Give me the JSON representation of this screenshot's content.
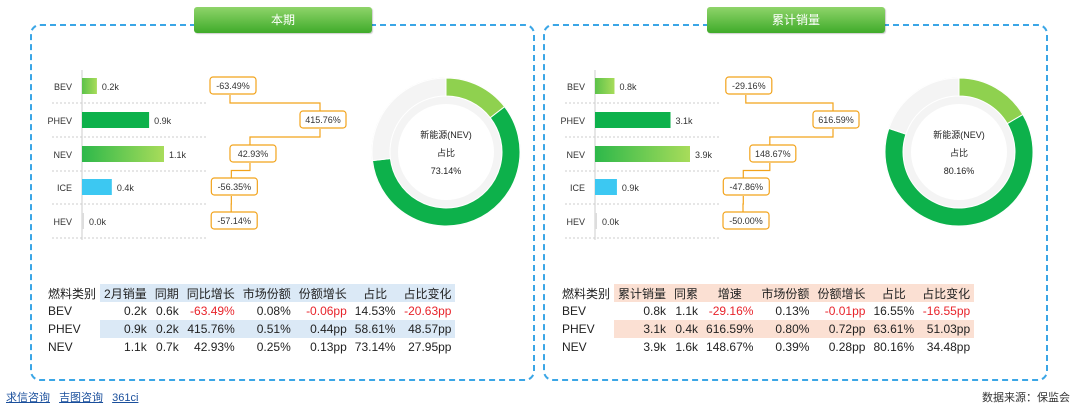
{
  "colors": {
    "BEV": "#8fd14f",
    "PHEV": "#0db14b",
    "NEV": "#5cc24a",
    "ICE": "#3cc8f2",
    "HEV": "#dddddd",
    "negative": "#e8232a",
    "border": "#3ba6e6"
  },
  "panels": [
    {
      "title": "本期",
      "donut_label_line1": "新能源(NEV)",
      "donut_label_line2": "占比",
      "donut_value": "73.14%",
      "table_headers": [
        "燃料类别",
        "2月销量",
        "同期",
        "同比增长",
        "市场份额",
        "份额增长",
        "占比",
        "占比变化"
      ],
      "table_rows": [
        [
          "BEV",
          "0.2k",
          "0.6k",
          "-63.49%",
          "0.08%",
          "-0.06pp",
          "14.53%",
          "-20.63pp"
        ],
        [
          "PHEV",
          "0.9k",
          "0.2k",
          "415.76%",
          "0.51%",
          "0.44pp",
          "58.61%",
          "48.57pp"
        ],
        [
          "NEV",
          "1.1k",
          "0.7k",
          "42.93%",
          "0.25%",
          "0.13pp",
          "73.14%",
          "27.95pp"
        ]
      ]
    },
    {
      "title": "累计销量",
      "donut_label_line1": "新能源(NEV)",
      "donut_label_line2": "占比",
      "donut_value": "80.16%",
      "table_headers": [
        "燃料类别",
        "累计销量",
        "同累",
        "增速",
        "市场份额",
        "份额增长",
        "占比",
        "占比变化"
      ],
      "table_rows": [
        [
          "BEV",
          "0.8k",
          "1.1k",
          "-29.16%",
          "0.13%",
          "-0.01pp",
          "16.55%",
          "-16.55pp"
        ],
        [
          "PHEV",
          "3.1k",
          "0.4k",
          "616.59%",
          "0.80%",
          "0.72pp",
          "63.61%",
          "51.03pp"
        ],
        [
          "NEV",
          "3.9k",
          "1.6k",
          "148.67%",
          "0.39%",
          "0.28pp",
          "80.16%",
          "34.48pp"
        ]
      ]
    }
  ],
  "chart_data": [
    {
      "type": "bar",
      "categories": [
        "BEV",
        "PHEV",
        "NEV",
        "ICE",
        "HEV"
      ],
      "values": [
        0.2,
        0.9,
        1.1,
        0.4,
        0.0
      ],
      "value_labels": [
        "0.2k",
        "0.9k",
        "1.1k",
        "0.4k",
        "0.0k"
      ],
      "growth_labels": [
        "-63.49%",
        "415.76%",
        "42.93%",
        "-56.35%",
        "-57.14%"
      ],
      "growth": [
        -63.49,
        415.76,
        42.93,
        -56.35,
        -57.14
      ],
      "donut": {
        "nev_share": 73.14,
        "segments": [
          {
            "name": "BEV",
            "value": 14.53
          },
          {
            "name": "PHEV",
            "value": 58.61
          },
          {
            "name": "other",
            "value": 26.86
          }
        ]
      }
    },
    {
      "type": "bar",
      "categories": [
        "BEV",
        "PHEV",
        "NEV",
        "ICE",
        "HEV"
      ],
      "values": [
        0.8,
        3.1,
        3.9,
        0.9,
        0.0
      ],
      "value_labels": [
        "0.8k",
        "3.1k",
        "3.9k",
        "0.9k",
        "0.0k"
      ],
      "growth_labels": [
        "-29.16%",
        "616.59%",
        "148.67%",
        "-47.86%",
        "-50.00%"
      ],
      "growth": [
        -29.16,
        616.59,
        148.67,
        -47.86,
        -50.0
      ],
      "donut": {
        "nev_share": 80.16,
        "segments": [
          {
            "name": "BEV",
            "value": 16.55
          },
          {
            "name": "PHEV",
            "value": 63.61
          },
          {
            "name": "other",
            "value": 19.84
          }
        ]
      }
    }
  ],
  "footer": {
    "links": [
      "求信咨询",
      "吉图咨询",
      "361ci"
    ],
    "source": "数据来源：保监会"
  }
}
